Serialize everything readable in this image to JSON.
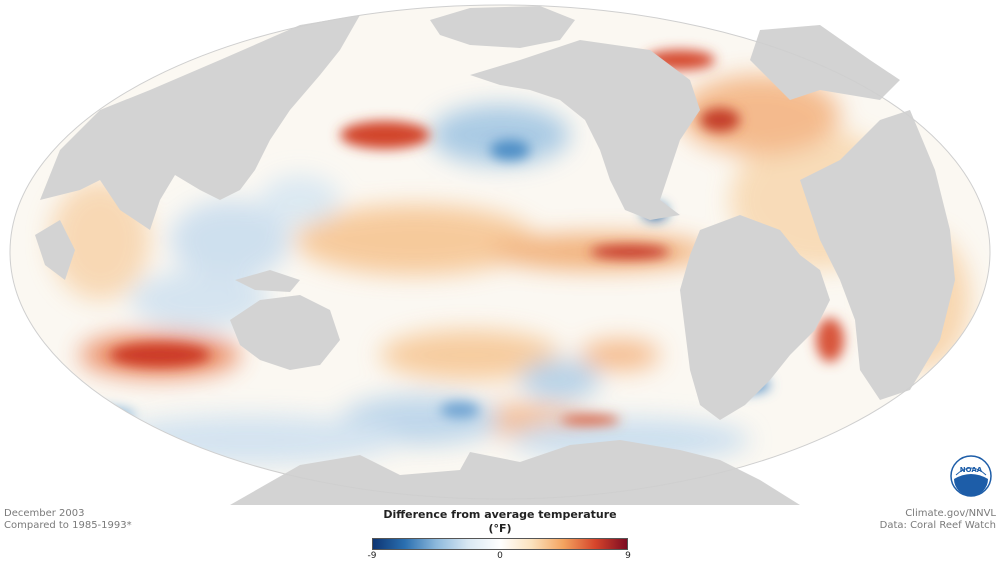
{
  "map": {
    "projection": "Mollweide",
    "land_color": "#d3d3d3",
    "ocean_base_color": "#fbf8f2"
  },
  "date_label": "December 2003",
  "baseline_label": "Compared to 1985-1993*",
  "legend": {
    "title": "Difference from average temperature (°F)",
    "min_label": "-9",
    "mid_label": "0",
    "max_label": "9",
    "colors": [
      "#0d3573",
      "#2a6fb0",
      "#8db9dc",
      "#d9e8f3",
      "#ffffff",
      "#fbe2bd",
      "#f4a35f",
      "#d6452b",
      "#7d0b22"
    ]
  },
  "credit": {
    "source_site": "Climate.gov/NNVL",
    "data_source": "Data: Coral Reef Watch"
  },
  "logo": {
    "text": "NOAA",
    "color": "#1d5da8"
  }
}
